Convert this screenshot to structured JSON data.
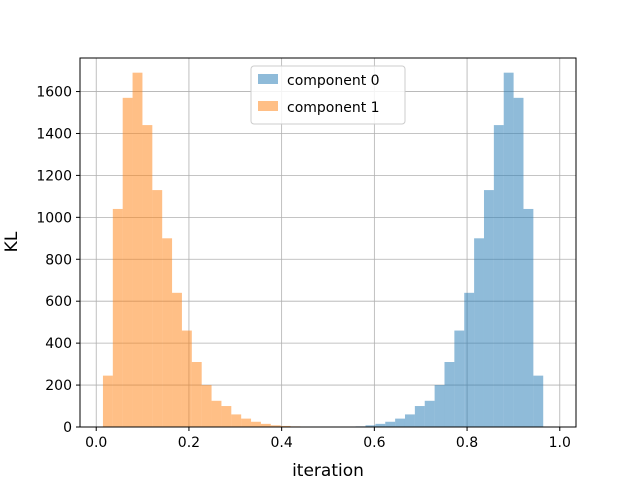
{
  "chart_data": {
    "type": "bar",
    "title": "",
    "xlabel": "iteration",
    "ylabel": "KL",
    "xlim": [
      -0.035,
      1.035
    ],
    "ylim": [
      0,
      1760
    ],
    "xticks": [
      0.0,
      0.2,
      0.4,
      0.6,
      0.8,
      1.0
    ],
    "xtick_labels": [
      "0.0",
      "0.2",
      "0.4",
      "0.6",
      "0.8",
      "1.0"
    ],
    "yticks": [
      0,
      200,
      400,
      600,
      800,
      1000,
      1200,
      1400,
      1600
    ],
    "ytick_labels": [
      "0",
      "200",
      "400",
      "600",
      "800",
      "1000",
      "1200",
      "1400",
      "1600"
    ],
    "grid": true,
    "legend": {
      "position": "top-center"
    },
    "bin_width": 0.0213,
    "series": [
      {
        "name": "component 0",
        "color": "#1f77b4",
        "alpha": 0.5,
        "bin_starts": [
          0.5596,
          0.5809,
          0.6022,
          0.6235,
          0.6448,
          0.6661,
          0.6874,
          0.7087,
          0.73,
          0.7513,
          0.7726,
          0.7939,
          0.8152,
          0.8365,
          0.8578,
          0.8791,
          0.9004,
          0.9217,
          0.943,
          0.9643
        ],
        "values": [
          3,
          8,
          15,
          25,
          40,
          60,
          100,
          125,
          200,
          310,
          460,
          640,
          900,
          1130,
          1440,
          1690,
          1570,
          1040,
          245,
          0
        ]
      },
      {
        "name": "component 1",
        "color": "#ff7f0e",
        "alpha": 0.5,
        "bin_starts": [
          0.0145,
          0.0358,
          0.0571,
          0.0784,
          0.0997,
          0.121,
          0.1423,
          0.1636,
          0.1849,
          0.2062,
          0.2275,
          0.2488,
          0.2701,
          0.2914,
          0.3127,
          0.334,
          0.3553,
          0.3766,
          0.3979,
          0.4192
        ],
        "values": [
          245,
          1040,
          1570,
          1690,
          1440,
          1130,
          900,
          640,
          460,
          310,
          200,
          125,
          100,
          60,
          40,
          25,
          15,
          8,
          5,
          3
        ]
      }
    ]
  }
}
